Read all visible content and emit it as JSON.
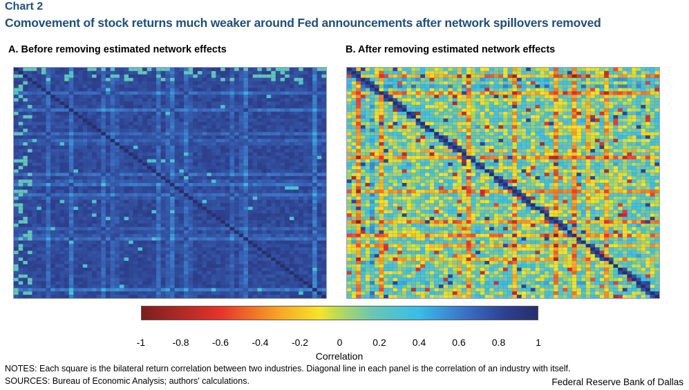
{
  "chart_label": "Chart 2",
  "title": "Comovement of stock returns much weaker around Fed announcements after network spillovers removed",
  "notes": "NOTES: Each square is the bilateral return correlation between two industries. Diagonal line in each panel is the correlation of an industry with itself.",
  "sources": "SOURCES: Bureau of Economic Analysis; authors' calculations.",
  "credit": "Federal Reserve Bank of Dallas",
  "chart_data": [
    {
      "type": "heatmap",
      "title": "A. Before removing estimated network effects",
      "n_industries": 68,
      "diagonal_value": 1,
      "typical_value": 0.8,
      "value_range": [
        0.5,
        1.0
      ],
      "colorscale": "jet-reversed"
    },
    {
      "type": "heatmap",
      "title": "B. After removing estimated network effects",
      "n_industries": 68,
      "diagonal_value": 1,
      "typical_value": 0.15,
      "value_range": [
        -0.9,
        1.0
      ],
      "colorscale": "jet-reversed"
    }
  ],
  "colorbar": {
    "label": "Correlation",
    "ticks": [
      "-1",
      "-0.8",
      "-0.6",
      "-0.4",
      "-0.2",
      "0",
      "0.2",
      "0.4",
      "0.6",
      "0.8",
      "1"
    ],
    "min": -1,
    "max": 1
  }
}
